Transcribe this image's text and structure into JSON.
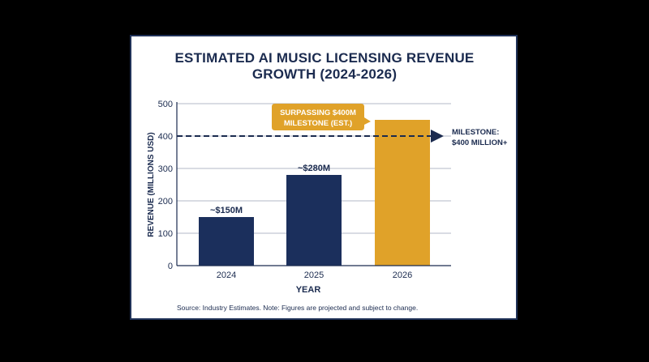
{
  "chart_data": {
    "type": "bar",
    "title_line1": "ESTIMATED AI MUSIC LICENSING REVENUE",
    "title_line2": "GROWTH (2024-2026)",
    "xlabel": "YEAR",
    "ylabel": "REVENUE (MILLIONS USD)",
    "categories": [
      "2024",
      "2025",
      "2026"
    ],
    "values": [
      150,
      280,
      450
    ],
    "data_labels": [
      "~$150M",
      "~$280M",
      ""
    ],
    "ylim": [
      0,
      500
    ],
    "yticks": [
      "0",
      "100",
      "200",
      "300",
      "400",
      "500"
    ],
    "grid": true,
    "colors": [
      "#1b2f5c",
      "#1b2f5c",
      "#e0a229"
    ],
    "milestone": {
      "value": 400,
      "label_line1": "MILESTONE:",
      "label_line2": "$400 MILLION+"
    },
    "callout": {
      "line1": "SURPASSING $400M",
      "line2": "MILESTONE (EST.)",
      "color": "#e0a229"
    },
    "source": "Source: Industry Estimates. Note: Figures are projected and subject to change."
  }
}
